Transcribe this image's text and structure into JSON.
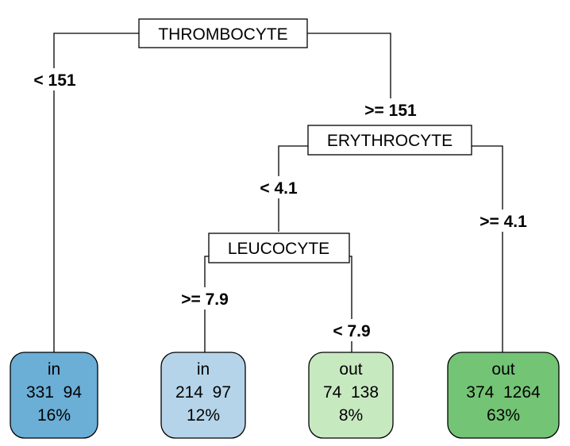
{
  "splits": [
    {
      "id": "root",
      "variable": "THROMBOCYTE",
      "left_condition": "< 151",
      "right_condition": ">= 151"
    },
    {
      "id": "ery",
      "variable": "ERYTHROCYTE",
      "left_condition": "< 4.1",
      "right_condition": ">= 4.1"
    },
    {
      "id": "leu",
      "variable": "LEUCOCYTE",
      "left_condition": ">= 7.9",
      "right_condition": "< 7.9"
    }
  ],
  "leaves": [
    {
      "id": "leaf1",
      "class": "in",
      "counts": "331  94",
      "percent": "16%",
      "color": "#6baed6"
    },
    {
      "id": "leaf2",
      "class": "in",
      "counts": "214  97",
      "percent": "12%",
      "color": "#b5d4e9"
    },
    {
      "id": "leaf3",
      "class": "out",
      "counts": "74  138",
      "percent": "8%",
      "color": "#c7e9c0"
    },
    {
      "id": "leaf4",
      "class": "out",
      "counts": "374  1264",
      "percent": "63%",
      "color": "#74c476"
    }
  ]
}
